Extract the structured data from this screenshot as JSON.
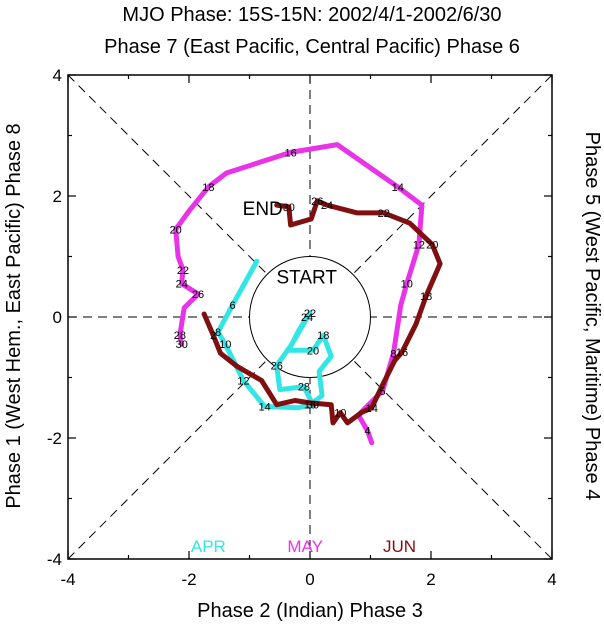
{
  "chart_data": {
    "type": "line",
    "title": "MJO Phase: 15S-15N: 2002/4/1-2002/6/30",
    "top_label": "Phase 7 (East Pacific, Central Pacific) Phase 6",
    "bottom_label": "Phase 2 (Indian) Phase 3",
    "left_label": "Phase 1 (West Hem., East Pacific) Phase 8",
    "right_label": "Phase 5 (West Pacific, Maritime) Phase 4",
    "xlim": [
      -4,
      4
    ],
    "ylim": [
      -4,
      4
    ],
    "xticks": [
      "-4",
      "-2",
      "0",
      "2",
      "4"
    ],
    "yticks": [
      "-4",
      "-2",
      "0",
      "2",
      "4"
    ],
    "unit_circle_radius": 1,
    "start_label": "START",
    "end_label": "END",
    "legend_placement": "bottom-inside",
    "series": [
      {
        "name": "APR",
        "color": "#33e6e6",
        "points": [
          {
            "x": -0.88,
            "y": 0.92
          },
          {
            "x": -1.28,
            "y": 0.2,
            "label": "6"
          },
          {
            "x": -1.52,
            "y": -0.25,
            "label": "8"
          },
          {
            "x": -1.4,
            "y": -0.45,
            "label": "10"
          },
          {
            "x": -1.1,
            "y": -1.05,
            "label": "12"
          },
          {
            "x": -0.75,
            "y": -1.48,
            "label": "14"
          },
          {
            "x": -0.2,
            "y": -1.5
          },
          {
            "x": 0.0,
            "y": -1.45,
            "label": "16"
          },
          {
            "x": 0.2,
            "y": -1.3
          },
          {
            "x": 0.15,
            "y": -0.9
          },
          {
            "x": 0.35,
            "y": -0.65
          },
          {
            "x": 0.22,
            "y": -0.3,
            "label": "18"
          },
          {
            "x": 0.05,
            "y": -0.55,
            "label": "20"
          },
          {
            "x": -0.35,
            "y": -0.55
          },
          {
            "x": -0.2,
            "y": -0.25
          },
          {
            "x": -0.05,
            "y": 0.0,
            "label": "24"
          },
          {
            "x": 0.0,
            "y": 0.07,
            "label": "22"
          },
          {
            "x": -0.3,
            "y": -0.45
          },
          {
            "x": -0.55,
            "y": -0.8,
            "label": "26"
          },
          {
            "x": -0.5,
            "y": -1.2
          },
          {
            "x": -0.1,
            "y": -1.15,
            "label": "28"
          },
          {
            "x": 0.05,
            "y": -1.45,
            "label": "30"
          }
        ]
      },
      {
        "name": "MAY",
        "color": "#e833e8",
        "points": [
          {
            "x": 1.02,
            "y": -2.08
          },
          {
            "x": 0.95,
            "y": -1.88,
            "label": "4"
          },
          {
            "x": 0.8,
            "y": -1.62
          },
          {
            "x": 1.2,
            "y": -1.22,
            "label": "5"
          },
          {
            "x": 1.38,
            "y": -0.6,
            "label": "8"
          },
          {
            "x": 1.5,
            "y": 0.2
          },
          {
            "x": 1.6,
            "y": 0.55,
            "label": "10"
          },
          {
            "x": 1.8,
            "y": 1.2,
            "label": "12"
          },
          {
            "x": 1.85,
            "y": 1.85
          },
          {
            "x": 1.45,
            "y": 2.15,
            "label": "14"
          },
          {
            "x": 0.45,
            "y": 2.85
          },
          {
            "x": -0.32,
            "y": 2.72,
            "label": "16"
          },
          {
            "x": -1.38,
            "y": 2.38
          },
          {
            "x": -1.68,
            "y": 2.15,
            "label": "18"
          },
          {
            "x": -2.0,
            "y": 1.75
          },
          {
            "x": -2.22,
            "y": 1.45,
            "label": "20"
          },
          {
            "x": -2.18,
            "y": 1.0
          },
          {
            "x": -2.1,
            "y": 0.78,
            "label": "22"
          },
          {
            "x": -2.12,
            "y": 0.55,
            "label": "24"
          },
          {
            "x": -1.85,
            "y": 0.38,
            "label": "26"
          },
          {
            "x": -2.08,
            "y": 0.15
          },
          {
            "x": -2.15,
            "y": -0.3,
            "label": "28"
          },
          {
            "x": -2.12,
            "y": -0.45,
            "label": "30"
          }
        ]
      },
      {
        "name": "JUN",
        "color": "#801010",
        "points": [
          {
            "x": -1.75,
            "y": 0.05
          },
          {
            "x": -1.6,
            "y": -0.3,
            "label": "2"
          },
          {
            "x": -1.48,
            "y": -0.6
          },
          {
            "x": -1.2,
            "y": -0.82
          },
          {
            "x": -0.8,
            "y": -1.05
          },
          {
            "x": -0.55,
            "y": -1.45
          },
          {
            "x": -0.25,
            "y": -1.38
          },
          {
            "x": 0.0,
            "y": -1.42
          },
          {
            "x": 0.35,
            "y": -1.45
          },
          {
            "x": 0.38,
            "y": -1.75
          },
          {
            "x": 0.5,
            "y": -1.58,
            "label": "10"
          },
          {
            "x": 0.62,
            "y": -1.75
          },
          {
            "x": 0.85,
            "y": -1.58
          },
          {
            "x": 1.02,
            "y": -1.5,
            "label": "14"
          },
          {
            "x": 1.2,
            "y": -1.12
          },
          {
            "x": 1.4,
            "y": -0.72
          },
          {
            "x": 1.52,
            "y": -0.58,
            "label": "16"
          },
          {
            "x": 1.75,
            "y": -0.12
          },
          {
            "x": 1.92,
            "y": 0.35,
            "label": "18"
          },
          {
            "x": 2.15,
            "y": 0.88
          },
          {
            "x": 2.02,
            "y": 1.2,
            "label": "20"
          },
          {
            "x": 1.65,
            "y": 1.55
          },
          {
            "x": 1.22,
            "y": 1.72,
            "label": "22"
          },
          {
            "x": 0.78,
            "y": 1.72
          },
          {
            "x": 0.28,
            "y": 1.85,
            "label": "24"
          },
          {
            "x": 0.12,
            "y": 1.92,
            "label": "26"
          },
          {
            "x": 0.02,
            "y": 1.62
          },
          {
            "x": -0.32,
            "y": 1.52
          },
          {
            "x": -0.35,
            "y": 1.82,
            "label": "30"
          },
          {
            "x": -0.55,
            "y": 1.85
          }
        ]
      }
    ]
  }
}
